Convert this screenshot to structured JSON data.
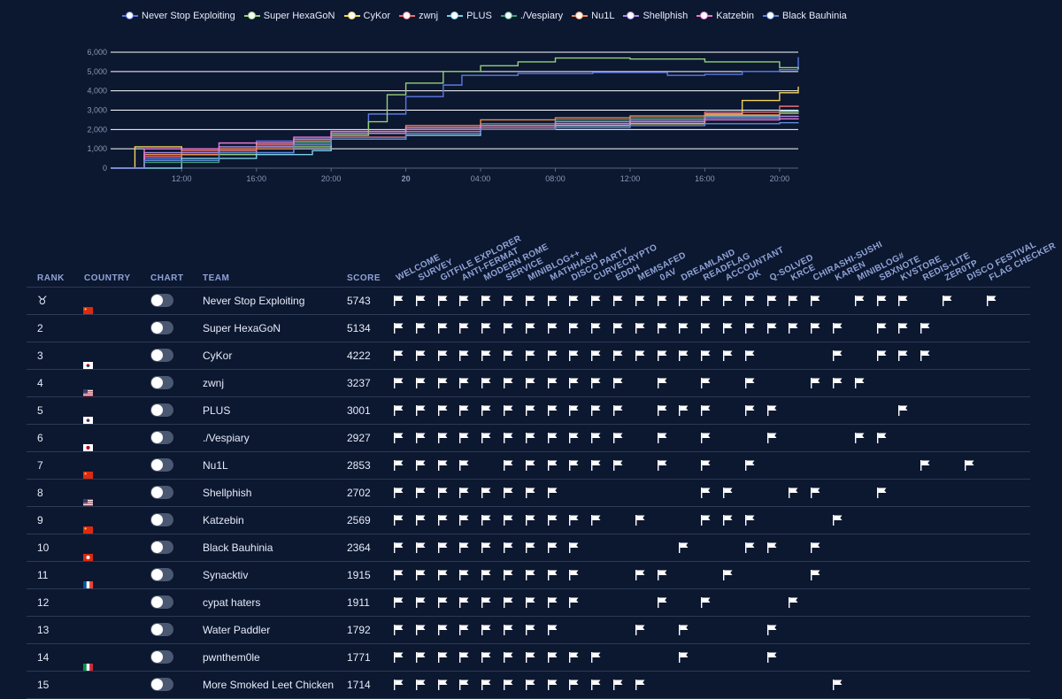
{
  "chart_data": {
    "type": "line",
    "xlabels": [
      "12:00",
      "16:00",
      "20:00",
      "20",
      "04:00",
      "08:00",
      "12:00",
      "16:00",
      "20:00"
    ],
    "x_hours": [
      12,
      16,
      20,
      24,
      28,
      32,
      36,
      40,
      44
    ],
    "xlim_hours": [
      8.2,
      45
    ],
    "yticks": [
      0,
      1000,
      2000,
      3000,
      4000,
      5000,
      6000
    ],
    "ytick_labels": [
      "0",
      "1,000",
      "2,000",
      "3,000",
      "4,000",
      "5,000",
      "6,000"
    ],
    "ylim": [
      0,
      6000
    ],
    "series": [
      {
        "name": "Never Stop Exploiting",
        "color": "#5b78e4",
        "points": [
          [
            8.2,
            0
          ],
          [
            10,
            500
          ],
          [
            12,
            800
          ],
          [
            16,
            1400
          ],
          [
            20,
            1900
          ],
          [
            22,
            2800
          ],
          [
            24,
            3700
          ],
          [
            26,
            4300
          ],
          [
            27,
            4800
          ],
          [
            30,
            4900
          ],
          [
            34,
            4950
          ],
          [
            38,
            4800
          ],
          [
            40,
            4850
          ],
          [
            42,
            5000
          ],
          [
            44,
            5100
          ],
          [
            45,
            5743
          ]
        ]
      },
      {
        "name": "Super HexaGoN",
        "color": "#93cf7a",
        "points": [
          [
            8.2,
            0
          ],
          [
            10,
            400
          ],
          [
            12,
            700
          ],
          [
            16,
            1100
          ],
          [
            20,
            1700
          ],
          [
            22,
            2400
          ],
          [
            23,
            3800
          ],
          [
            24,
            4400
          ],
          [
            26,
            5000
          ],
          [
            28,
            5300
          ],
          [
            30,
            5500
          ],
          [
            32,
            5700
          ],
          [
            36,
            5650
          ],
          [
            40,
            5500
          ],
          [
            44,
            5200
          ],
          [
            45,
            5134
          ]
        ]
      },
      {
        "name": "CyKor",
        "color": "#f3d35a",
        "points": [
          [
            8.2,
            0
          ],
          [
            9.5,
            1100
          ],
          [
            12,
            900
          ],
          [
            16,
            1300
          ],
          [
            20,
            1800
          ],
          [
            24,
            2000
          ],
          [
            28,
            2000
          ],
          [
            32,
            2200
          ],
          [
            36,
            2300
          ],
          [
            40,
            2800
          ],
          [
            42,
            3500
          ],
          [
            44,
            3900
          ],
          [
            45,
            4222
          ]
        ]
      },
      {
        "name": "zwnj",
        "color": "#ea6f76",
        "points": [
          [
            8.2,
            0
          ],
          [
            10,
            600
          ],
          [
            12,
            900
          ],
          [
            16,
            1200
          ],
          [
            20,
            1600
          ],
          [
            24,
            1900
          ],
          [
            28,
            2100
          ],
          [
            32,
            2300
          ],
          [
            36,
            2600
          ],
          [
            40,
            2900
          ],
          [
            44,
            3200
          ],
          [
            45,
            3237
          ]
        ]
      },
      {
        "name": "PLUS",
        "color": "#7dcde6",
        "points": [
          [
            8.2,
            0
          ],
          [
            12,
            500
          ],
          [
            16,
            700
          ],
          [
            19,
            900
          ],
          [
            20,
            1500
          ],
          [
            24,
            1700
          ],
          [
            28,
            2000
          ],
          [
            32,
            2200
          ],
          [
            36,
            2400
          ],
          [
            40,
            2700
          ],
          [
            44,
            2950
          ],
          [
            45,
            3001
          ]
        ]
      },
      {
        "name": "./Vespiary",
        "color": "#3fa079",
        "points": [
          [
            8.2,
            0
          ],
          [
            10,
            300
          ],
          [
            14,
            800
          ],
          [
            18,
            1300
          ],
          [
            20,
            1800
          ],
          [
            24,
            2100
          ],
          [
            28,
            2300
          ],
          [
            32,
            2500
          ],
          [
            36,
            2600
          ],
          [
            40,
            2750
          ],
          [
            44,
            2900
          ],
          [
            45,
            2927
          ]
        ]
      },
      {
        "name": "Nu1L",
        "color": "#ef8c53",
        "points": [
          [
            8.2,
            0
          ],
          [
            10,
            700
          ],
          [
            14,
            1000
          ],
          [
            18,
            1400
          ],
          [
            20,
            1900
          ],
          [
            24,
            2200
          ],
          [
            28,
            2500
          ],
          [
            32,
            2600
          ],
          [
            36,
            2700
          ],
          [
            40,
            2750
          ],
          [
            44,
            2830
          ],
          [
            45,
            2853
          ]
        ]
      },
      {
        "name": "Shellphish",
        "color": "#a98de8",
        "points": [
          [
            8.2,
            0
          ],
          [
            10,
            800
          ],
          [
            14,
            1100
          ],
          [
            18,
            1500
          ],
          [
            20,
            1800
          ],
          [
            24,
            2000
          ],
          [
            28,
            2200
          ],
          [
            32,
            2400
          ],
          [
            36,
            2500
          ],
          [
            40,
            2600
          ],
          [
            44,
            2680
          ],
          [
            45,
            2702
          ]
        ]
      },
      {
        "name": "Katzebin",
        "color": "#e77ad1",
        "points": [
          [
            8.2,
            0
          ],
          [
            10,
            1000
          ],
          [
            14,
            1300
          ],
          [
            18,
            1600
          ],
          [
            20,
            1900
          ],
          [
            24,
            2100
          ],
          [
            28,
            2200
          ],
          [
            32,
            2300
          ],
          [
            36,
            2400
          ],
          [
            40,
            2500
          ],
          [
            44,
            2550
          ],
          [
            45,
            2569
          ]
        ]
      },
      {
        "name": "Black Bauhinia",
        "color": "#5f88d6",
        "points": [
          [
            8.2,
            0
          ],
          [
            10,
            400
          ],
          [
            14,
            800
          ],
          [
            18,
            1200
          ],
          [
            20,
            1500
          ],
          [
            24,
            1800
          ],
          [
            28,
            2000
          ],
          [
            32,
            2100
          ],
          [
            36,
            2200
          ],
          [
            40,
            2300
          ],
          [
            44,
            2350
          ],
          [
            45,
            2364
          ]
        ]
      }
    ]
  },
  "headers": {
    "rank": "RANK",
    "country": "COUNTRY",
    "chart": "CHART",
    "team": "TEAM",
    "score": "SCORE"
  },
  "challenges": [
    "WELCOME",
    "SURVEY",
    "GITFILE EXPLORER",
    "ANTI-FERMAT",
    "MODERN ROME",
    "SERVICE",
    "MINIBLOG++",
    "MATHHASH",
    "DISCO PARTY",
    "CURVECRYPTO",
    "EDDH",
    "MEMSAFED",
    "0AV",
    "DREAMLAND",
    "READFLAG",
    "ACCOUNTANT",
    "OK",
    "Q-SOLVED",
    "KRCE",
    "CHIRASHI-SUSHI",
    "KAREN",
    "MINIBLOG#",
    "SBXNOTE",
    "KVSTORE",
    "REDIS-LITE",
    "ZER0TP",
    "DISCO FESTIVAL",
    "FLAG CHECKER"
  ],
  "rows": [
    {
      "rank": "",
      "medal": "🥇",
      "country": "cn",
      "team": "Never Stop Exploiting",
      "score": "5743",
      "solved": [
        0,
        1,
        2,
        3,
        4,
        5,
        6,
        7,
        8,
        9,
        10,
        11,
        12,
        13,
        14,
        15,
        16,
        17,
        18,
        19,
        21,
        22,
        23,
        25,
        27
      ]
    },
    {
      "rank": "2",
      "country": "",
      "team": "Super HexaGoN",
      "score": "5134",
      "solved": [
        0,
        1,
        2,
        3,
        4,
        5,
        6,
        7,
        8,
        9,
        10,
        11,
        12,
        13,
        14,
        15,
        16,
        17,
        18,
        19,
        20,
        22,
        23,
        24
      ]
    },
    {
      "rank": "3",
      "country": "kr",
      "team": "CyKor",
      "score": "4222",
      "solved": [
        0,
        1,
        2,
        3,
        4,
        5,
        6,
        7,
        8,
        9,
        10,
        11,
        12,
        13,
        14,
        15,
        16,
        20,
        22,
        23,
        24
      ]
    },
    {
      "rank": "4",
      "country": "us",
      "team": "zwnj",
      "score": "3237",
      "solved": [
        0,
        1,
        2,
        3,
        4,
        5,
        6,
        7,
        8,
        9,
        10,
        12,
        14,
        16,
        19,
        20,
        21
      ]
    },
    {
      "rank": "5",
      "country": "kr",
      "team": "PLUS",
      "score": "3001",
      "solved": [
        0,
        1,
        2,
        3,
        4,
        5,
        6,
        7,
        8,
        9,
        10,
        12,
        13,
        14,
        16,
        17,
        23
      ]
    },
    {
      "rank": "6",
      "country": "jp",
      "team": "./Vespiary",
      "score": "2927",
      "solved": [
        0,
        1,
        2,
        3,
        4,
        5,
        6,
        7,
        8,
        9,
        10,
        12,
        14,
        17,
        21,
        22
      ]
    },
    {
      "rank": "7",
      "country": "cn",
      "team": "Nu1L",
      "score": "2853",
      "solved": [
        0,
        1,
        2,
        3,
        5,
        6,
        7,
        8,
        9,
        10,
        12,
        14,
        16,
        24,
        26
      ]
    },
    {
      "rank": "8",
      "country": "us",
      "team": "Shellphish",
      "score": "2702",
      "solved": [
        0,
        1,
        2,
        3,
        4,
        5,
        6,
        7,
        14,
        15,
        18,
        19,
        22
      ]
    },
    {
      "rank": "9",
      "country": "cn",
      "team": "Katzebin",
      "score": "2569",
      "solved": [
        0,
        1,
        2,
        3,
        4,
        5,
        6,
        7,
        8,
        9,
        11,
        14,
        15,
        16,
        20
      ]
    },
    {
      "rank": "10",
      "country": "hk",
      "team": "Black Bauhinia",
      "score": "2364",
      "solved": [
        0,
        1,
        2,
        3,
        4,
        5,
        6,
        7,
        8,
        13,
        16,
        17,
        19
      ]
    },
    {
      "rank": "11",
      "country": "fr",
      "team": "Synacktiv",
      "score": "1915",
      "solved": [
        0,
        1,
        2,
        3,
        4,
        5,
        6,
        7,
        8,
        11,
        12,
        15,
        19
      ]
    },
    {
      "rank": "12",
      "country": "",
      "team": "cypat haters",
      "score": "1911",
      "solved": [
        0,
        1,
        2,
        3,
        4,
        5,
        6,
        7,
        8,
        12,
        14,
        18
      ]
    },
    {
      "rank": "13",
      "country": "",
      "team": "Water Paddler",
      "score": "1792",
      "solved": [
        0,
        1,
        2,
        3,
        4,
        5,
        6,
        7,
        11,
        13,
        17
      ]
    },
    {
      "rank": "14",
      "country": "it",
      "team": "pwnthem0le",
      "score": "1771",
      "solved": [
        0,
        1,
        2,
        3,
        4,
        5,
        6,
        7,
        8,
        9,
        13,
        17
      ]
    },
    {
      "rank": "15",
      "country": "",
      "team": "More Smoked Leet Chicken",
      "score": "1714",
      "solved": [
        0,
        1,
        2,
        3,
        4,
        5,
        6,
        7,
        8,
        9,
        10,
        11,
        20
      ]
    }
  ]
}
